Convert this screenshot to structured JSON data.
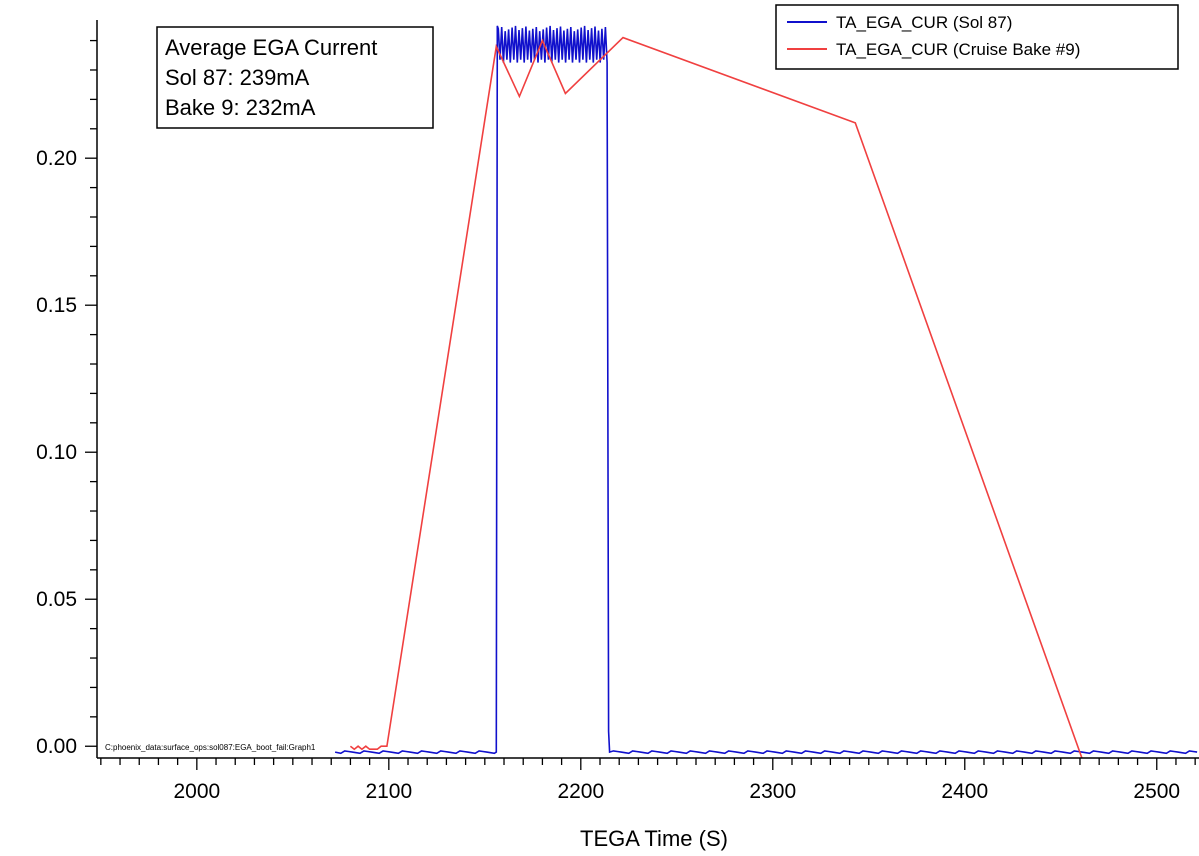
{
  "chart_data": {
    "type": "line",
    "title": "",
    "xlabel": "TEGA Time (S)",
    "ylabel": "",
    "xlim": [
      1948,
      2522
    ],
    "ylim": [
      -0.004,
      0.247
    ],
    "x_ticks": [
      2000,
      2100,
      2200,
      2300,
      2400,
      2500
    ],
    "x_tick_labels": [
      "2000",
      "2100",
      "2200",
      "2300",
      "2400",
      "2500"
    ],
    "y_ticks": [
      0.0,
      0.05,
      0.1,
      0.15,
      0.2
    ],
    "y_tick_labels": [
      "0.00",
      "0.05",
      "0.10",
      "0.15",
      "0.20"
    ],
    "grid": false,
    "legend_position": "top-right",
    "series": [
      {
        "name": "TA_EGA_CUR (Sol 87)",
        "color": "#1010cc",
        "x": [
          2072,
          2085,
          2100,
          2115,
          2130,
          2145,
          2155,
          2156,
          2156.5,
          2160,
          2165,
          2170,
          2175,
          2180,
          2185,
          2190,
          2195,
          2200,
          2205,
          2210,
          2214,
          2214.5,
          2215,
          2216,
          2230,
          2260,
          2300,
          2340,
          2380,
          2420,
          2460,
          2500,
          2522
        ],
        "y": [
          -0.002,
          -0.002,
          -0.002,
          -0.002,
          -0.002,
          -0.002,
          -0.002,
          -0.002,
          0.245,
          0.233,
          0.244,
          0.232,
          0.245,
          0.233,
          0.244,
          0.232,
          0.245,
          0.233,
          0.244,
          0.232,
          0.245,
          0.005,
          -0.002,
          -0.002,
          -0.002,
          -0.002,
          -0.002,
          -0.002,
          -0.002,
          -0.002,
          -0.002,
          -0.002,
          -0.002
        ]
      },
      {
        "name": "TA_EGA_CUR (Cruise Bake #9)",
        "color": "#f04040",
        "x": [
          2080,
          2082,
          2084,
          2086,
          2088,
          2090,
          2092,
          2094,
          2096,
          2099,
          2156,
          2168,
          2180,
          2192,
          2222,
          2343,
          2461
        ],
        "y": [
          0.0,
          -0.001,
          0.0,
          -0.001,
          0.0,
          -0.001,
          -0.001,
          -0.001,
          0.0,
          0.0,
          0.238,
          0.221,
          0.24,
          0.222,
          0.241,
          0.212,
          -0.004
        ]
      }
    ],
    "annotation": {
      "lines": [
        "Average EGA Current",
        "Sol 87:  239mA",
        "Bake 9: 232mA"
      ]
    },
    "footer_path": "C:phoenix_data:surface_ops:sol087:EGA_boot_fail:Graph1"
  }
}
